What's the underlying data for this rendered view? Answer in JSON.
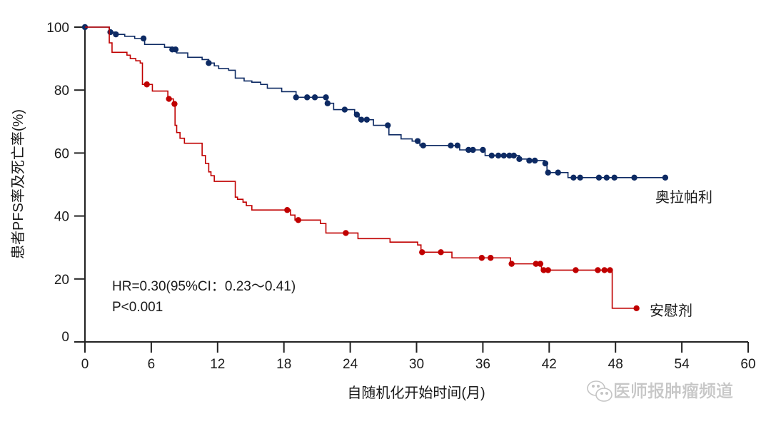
{
  "chart_data": {
    "type": "line",
    "subtype": "kaplan-meier step",
    "xlabel": "自随机化开始时间(月)",
    "ylabel": "患者PFS率及死亡率(%)",
    "xlim": [
      0,
      60
    ],
    "ylim": [
      0,
      100
    ],
    "xticks": [
      0,
      6,
      12,
      18,
      24,
      30,
      36,
      42,
      48,
      54,
      60
    ],
    "yticks": [
      0,
      20,
      40,
      60,
      80,
      100
    ],
    "grid": false,
    "annotations": [
      "HR=0.30(95%CI：0.23～0.41)",
      "P<0.001"
    ],
    "series": [
      {
        "name": "奥拉帕利",
        "color": "#0d2a63",
        "steps": [
          [
            0,
            100
          ],
          [
            2.2,
            98.4
          ],
          [
            2.8,
            97.7
          ],
          [
            3.6,
            97.1
          ],
          [
            4.5,
            96.4
          ],
          [
            5.4,
            94.5
          ],
          [
            7.2,
            93.6
          ],
          [
            7.9,
            92.9
          ],
          [
            8.3,
            91.8
          ],
          [
            9.3,
            90.4
          ],
          [
            10.6,
            89.7
          ],
          [
            11.2,
            88.6
          ],
          [
            11.7,
            87.7
          ],
          [
            12.1,
            86.8
          ],
          [
            13.0,
            86.3
          ],
          [
            13.6,
            83.8
          ],
          [
            14.4,
            82.9
          ],
          [
            15.1,
            82.5
          ],
          [
            15.9,
            81.8
          ],
          [
            16.5,
            80.6
          ],
          [
            17.8,
            79.5
          ],
          [
            19.1,
            77.7
          ],
          [
            21.9,
            75.8
          ],
          [
            22.5,
            73.8
          ],
          [
            24.4,
            72.2
          ],
          [
            24.8,
            70.6
          ],
          [
            26.1,
            68.8
          ],
          [
            27.5,
            65.8
          ],
          [
            28.6,
            64.5
          ],
          [
            29.6,
            63.8
          ],
          [
            30.3,
            62.4
          ],
          [
            33.9,
            61.0
          ],
          [
            36.2,
            59.2
          ],
          [
            39.3,
            58.1
          ],
          [
            40.1,
            57.6
          ],
          [
            41.6,
            56.7
          ],
          [
            41.8,
            53.8
          ],
          [
            43.7,
            52.2
          ]
        ],
        "end": 52.5,
        "censored": [
          0,
          2.3,
          2.8,
          5.3,
          7.9,
          8.2,
          11.2,
          19.1,
          20.1,
          20.8,
          21.8,
          21.95,
          23.5,
          24.6,
          25.0,
          25.5,
          27.4,
          30.1,
          30.6,
          33.1,
          33.7,
          34.7,
          35.1,
          36.0,
          36.8,
          37.4,
          37.9,
          38.4,
          38.8,
          39.3,
          40.2,
          40.7,
          41.65,
          41.9,
          42.8,
          44.2,
          44.8,
          46.5,
          47.2,
          47.9,
          49.7,
          52.5
        ]
      },
      {
        "name": "安慰剂",
        "color": "#c00000",
        "steps": [
          [
            0,
            100
          ],
          [
            2.2,
            95.0
          ],
          [
            2.45,
            92.0
          ],
          [
            3.8,
            91.1
          ],
          [
            4.1,
            90.0
          ],
          [
            4.6,
            89.3
          ],
          [
            5.0,
            88.6
          ],
          [
            5.2,
            81.8
          ],
          [
            6.1,
            79.7
          ],
          [
            7.5,
            77.2
          ],
          [
            8.0,
            75.6
          ],
          [
            8.15,
            68.8
          ],
          [
            8.3,
            66.5
          ],
          [
            8.6,
            64.7
          ],
          [
            9.0,
            63.1
          ],
          [
            10.6,
            59.2
          ],
          [
            10.9,
            56.7
          ],
          [
            11.2,
            54.0
          ],
          [
            11.4,
            52.8
          ],
          [
            11.7,
            51.0
          ],
          [
            13.6,
            46.0
          ],
          [
            13.8,
            45.3
          ],
          [
            14.3,
            44.4
          ],
          [
            14.6,
            43.3
          ],
          [
            15.1,
            41.9
          ],
          [
            18.6,
            40.3
          ],
          [
            19.0,
            38.7
          ],
          [
            21.3,
            37.6
          ],
          [
            21.8,
            34.6
          ],
          [
            24.7,
            32.8
          ],
          [
            27.6,
            31.7
          ],
          [
            30.1,
            30.8
          ],
          [
            30.4,
            28.5
          ],
          [
            33.2,
            26.7
          ],
          [
            38.5,
            24.8
          ],
          [
            41.3,
            22.8
          ],
          [
            47.7,
            10.7
          ]
        ],
        "end": 49.9,
        "censored": [
          5.6,
          7.6,
          8.1,
          18.3,
          19.3,
          23.6,
          30.5,
          32.2,
          35.9,
          36.7,
          38.6,
          40.8,
          41.2,
          41.5,
          41.9,
          44.4,
          46.4,
          47.0,
          47.5,
          49.9
        ]
      }
    ]
  },
  "watermark": {
    "text": "医师报肿瘤频道",
    "icon": "wechat-icon"
  }
}
